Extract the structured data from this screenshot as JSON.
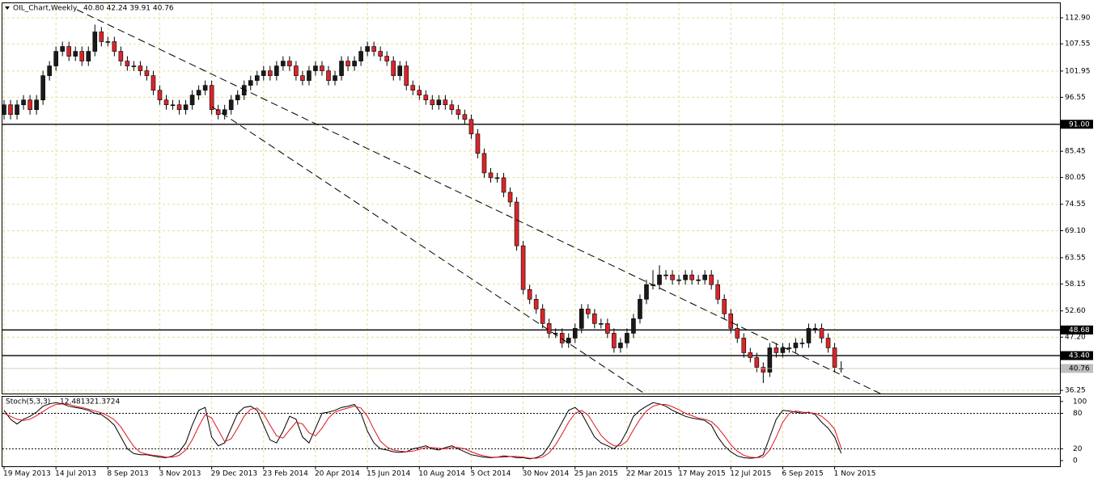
{
  "chart_data": [
    {
      "type": "candlestick",
      "title": "OIL_Chart,Weekly",
      "ohlc_text": "40.80 42.24 39.91 40.76",
      "categories": [
        "19 May 2013",
        null,
        null,
        null,
        null,
        null,
        null,
        null,
        "14 Jul 2013",
        null,
        null,
        null,
        null,
        null,
        null,
        null,
        "8 Sep 2013",
        null,
        null,
        null,
        null,
        null,
        null,
        null,
        "3 Nov 2013",
        null,
        null,
        null,
        null,
        null,
        null,
        null,
        "29 Dec 2013",
        null,
        null,
        null,
        null,
        null,
        null,
        null,
        "23 Feb 2014",
        null,
        null,
        null,
        null,
        null,
        null,
        null,
        "20 Apr 2014",
        null,
        null,
        null,
        null,
        null,
        null,
        null,
        "15 Jun 2014",
        null,
        null,
        null,
        null,
        null,
        null,
        null,
        "10 Aug 2014",
        null,
        null,
        null,
        null,
        null,
        null,
        null,
        "5 Oct 2014",
        null,
        null,
        null,
        null,
        null,
        null,
        null,
        "30 Nov 2014",
        null,
        null,
        null,
        null,
        null,
        null,
        null,
        "25 Jan 2015",
        null,
        null,
        null,
        null,
        null,
        null,
        null,
        "22 Mar 2015",
        null,
        null,
        null,
        null,
        null,
        null,
        null,
        "17 May 2015",
        null,
        null,
        null,
        null,
        null,
        null,
        null,
        "12 Jul 2015",
        null,
        null,
        null,
        null,
        null,
        null,
        null,
        "6 Sep 2015",
        null,
        null,
        null,
        null,
        null,
        null,
        null,
        "1 Nov 2015",
        null
      ],
      "open": [
        93,
        95,
        93,
        95,
        96,
        94,
        96,
        101,
        103,
        106,
        107,
        105,
        106,
        104,
        106,
        110,
        108,
        108,
        106,
        104,
        103,
        103,
        102,
        101,
        98,
        96,
        95,
        95,
        94,
        95,
        97,
        98,
        99,
        94,
        93,
        94,
        96,
        97,
        99,
        100,
        101,
        102,
        101,
        103,
        104,
        103,
        101,
        100,
        102,
        103,
        102,
        100,
        101,
        104,
        103,
        104,
        106,
        107,
        106,
        105,
        104,
        101,
        103,
        99,
        98,
        97,
        96,
        95,
        96,
        95,
        94,
        93,
        92,
        89,
        85,
        81,
        80,
        80,
        77,
        75,
        66,
        57,
        55,
        53,
        50,
        48,
        48,
        46,
        47,
        49,
        53,
        52,
        50,
        50,
        48,
        45,
        46,
        48,
        51,
        55,
        58,
        58,
        60,
        60,
        59,
        59,
        60,
        59,
        59,
        60,
        58,
        55,
        52,
        49,
        47,
        44,
        43,
        41,
        40,
        45,
        44,
        45,
        45,
        46,
        46,
        49,
        49,
        47,
        45,
        40.8
      ],
      "high": [
        96,
        96,
        96,
        97,
        97,
        97,
        102,
        104,
        107,
        108,
        108,
        107,
        107,
        107,
        111.5,
        111,
        109,
        109,
        107,
        105,
        104,
        104,
        103,
        102,
        99,
        97,
        96,
        96,
        96,
        98,
        99,
        100,
        100,
        95,
        95,
        97,
        98,
        100,
        101,
        102,
        103,
        103,
        104,
        105,
        105,
        104,
        102,
        103,
        104,
        104,
        103,
        102,
        105,
        105,
        105,
        107,
        108,
        108,
        107,
        106,
        105,
        104,
        104,
        100,
        99,
        98,
        97,
        97,
        97,
        96,
        95,
        94,
        93,
        90,
        86,
        82,
        81,
        81,
        78,
        76,
        67,
        58,
        56,
        54,
        51,
        49,
        49,
        48,
        50,
        54,
        54,
        53,
        51,
        51,
        49,
        47,
        49,
        52,
        56,
        59,
        61,
        62,
        61,
        61,
        60,
        61,
        61,
        60,
        61,
        61,
        59,
        56,
        53,
        50,
        48,
        45,
        44,
        42,
        46,
        46,
        46,
        46,
        47,
        47,
        50,
        50,
        50,
        48,
        46,
        42.24
      ],
      "low": [
        92,
        92,
        92,
        94,
        93,
        93,
        95,
        100,
        102,
        105,
        104,
        104,
        103,
        103,
        105,
        107,
        107,
        105,
        103,
        102,
        102,
        101,
        100,
        97,
        95,
        94,
        94,
        93,
        93,
        94,
        96,
        97,
        93,
        92,
        92,
        93,
        95,
        96,
        98,
        99,
        100,
        100,
        100,
        102,
        102,
        100,
        99,
        99,
        101,
        101,
        99,
        99,
        100,
        102,
        102,
        103,
        105,
        105,
        104,
        103,
        100,
        100,
        98,
        97,
        96,
        95,
        94,
        94,
        94,
        93,
        92,
        91,
        88,
        84,
        80,
        79,
        79,
        76,
        74,
        65,
        56,
        54,
        52,
        49,
        47,
        47,
        45,
        45,
        46,
        48,
        51,
        49,
        49,
        47,
        44,
        44,
        45,
        47,
        50,
        54,
        57,
        57,
        59,
        58,
        58,
        58,
        58,
        58,
        58,
        57,
        54,
        51,
        48,
        46,
        43,
        42,
        40,
        37.75,
        39,
        43,
        43,
        44,
        44,
        45,
        45,
        48,
        46,
        44,
        40,
        39.91
      ],
      "close": [
        95,
        93,
        95,
        96,
        94,
        96,
        101,
        103,
        106,
        107,
        105,
        106,
        104,
        106,
        110,
        108,
        108,
        106,
        104,
        103,
        103,
        102,
        101,
        98,
        96,
        95,
        95,
        94,
        95,
        97,
        98,
        99,
        94,
        93,
        94,
        96,
        97,
        99,
        100,
        101,
        102,
        101,
        103,
        104,
        103,
        101,
        100,
        102,
        103,
        102,
        100,
        101,
        104,
        103,
        104,
        106,
        107,
        106,
        105,
        104,
        101,
        103,
        99,
        98,
        97,
        96,
        95,
        96,
        95,
        94,
        93,
        92,
        89,
        85,
        81,
        80,
        80,
        77,
        75,
        66,
        57,
        55,
        53,
        50,
        48,
        48,
        46,
        47,
        49,
        53,
        52,
        50,
        50,
        48,
        45,
        46,
        48,
        51,
        55,
        58,
        58,
        60,
        60,
        59,
        59,
        60,
        59,
        59,
        60,
        58,
        55,
        52,
        49,
        47,
        44,
        43,
        41,
        40,
        45,
        44,
        45,
        45,
        46,
        46,
        49,
        49,
        47,
        45,
        41,
        40.76
      ],
      "up_color": "#1a1a1a",
      "down_color": "#d9262b",
      "ylim": [
        35.6,
        115.9
      ],
      "yticks": [
        {
          "value": 112.9,
          "label": "112.90"
        },
        {
          "value": 107.55,
          "label": "107.55"
        },
        {
          "value": 101.95,
          "label": "101.95"
        },
        {
          "value": 96.55,
          "label": "96.55"
        },
        {
          "value": 85.45,
          "label": "85.45"
        },
        {
          "value": 80.05,
          "label": "80.05"
        },
        {
          "value": 74.55,
          "label": "74.55"
        },
        {
          "value": 69.1,
          "label": "69.10"
        },
        {
          "value": 63.55,
          "label": "63.55"
        },
        {
          "value": 58.15,
          "label": "58.15"
        },
        {
          "value": 52.6,
          "label": "52.60"
        },
        {
          "value": 47.2,
          "label": "47.20"
        },
        {
          "value": 36.25,
          "label": "36.25"
        }
      ],
      "levels": [
        {
          "value": 91,
          "label": "91.00"
        },
        {
          "value": 48.68,
          "label": "48.68"
        },
        {
          "value": 43.4,
          "label": "43.40"
        }
      ],
      "grid": true
    },
    {
      "type": "line",
      "title": "Stoch(5,3,3)",
      "series": [
        {
          "color": "#000000",
          "values": [
            85,
            70,
            62,
            70,
            75,
            82,
            92,
            96,
            98,
            96,
            92,
            90,
            88,
            85,
            80,
            78,
            70,
            60,
            40,
            20,
            12,
            10,
            10,
            8,
            6,
            5,
            8,
            15,
            30,
            60,
            85,
            90,
            40,
            25,
            30,
            55,
            80,
            90,
            92,
            85,
            60,
            35,
            30,
            50,
            75,
            70,
            40,
            30,
            55,
            80,
            82,
            85,
            90,
            92,
            95,
            80,
            50,
            30,
            20,
            18,
            15,
            14,
            15,
            20,
            22,
            25,
            20,
            18,
            22,
            25,
            20,
            15,
            10,
            8,
            6,
            5,
            6,
            8,
            7,
            5,
            5,
            3,
            5,
            10,
            25,
            45,
            65,
            85,
            90,
            80,
            60,
            40,
            30,
            25,
            20,
            30,
            50,
            75,
            85,
            92,
            98,
            96,
            92,
            85,
            80,
            75,
            72,
            70,
            68,
            60,
            40,
            25,
            15,
            8,
            5,
            4,
            5,
            10,
            40,
            70,
            85,
            84,
            82,
            80,
            82,
            78,
            65,
            55,
            40,
            12.4813
          ]
        },
        {
          "color": "#e0141e",
          "values": [
            80,
            75,
            70,
            68,
            70,
            76,
            83,
            90,
            95,
            96,
            95,
            92,
            90,
            87,
            84,
            81,
            76,
            69,
            57,
            40,
            24,
            14,
            11,
            9,
            8,
            6,
            6,
            9,
            18,
            35,
            58,
            78,
            72,
            52,
            32,
            37,
            55,
            75,
            87,
            89,
            79,
            60,
            42,
            38,
            52,
            65,
            62,
            47,
            42,
            55,
            72,
            82,
            86,
            89,
            92,
            89,
            75,
            53,
            33,
            23,
            18,
            16,
            15,
            16,
            19,
            22,
            22,
            21,
            20,
            22,
            22,
            20,
            15,
            11,
            8,
            6,
            6,
            6,
            7,
            7,
            6,
            4,
            4,
            6,
            13,
            27,
            45,
            65,
            80,
            85,
            77,
            60,
            43,
            32,
            25,
            25,
            33,
            52,
            70,
            84,
            92,
            95,
            95,
            91,
            86,
            80,
            76,
            72,
            70,
            66,
            56,
            42,
            27,
            16,
            9,
            6,
            5,
            6,
            18,
            40,
            65,
            80,
            84,
            82,
            81,
            80,
            75,
            66,
            53,
            21.3724
          ]
        }
      ],
      "ylim": [
        -9.5,
        108
      ],
      "yticks": [
        100,
        80,
        20,
        0
      ],
      "levels": [
        80,
        20
      ]
    }
  ]
}
